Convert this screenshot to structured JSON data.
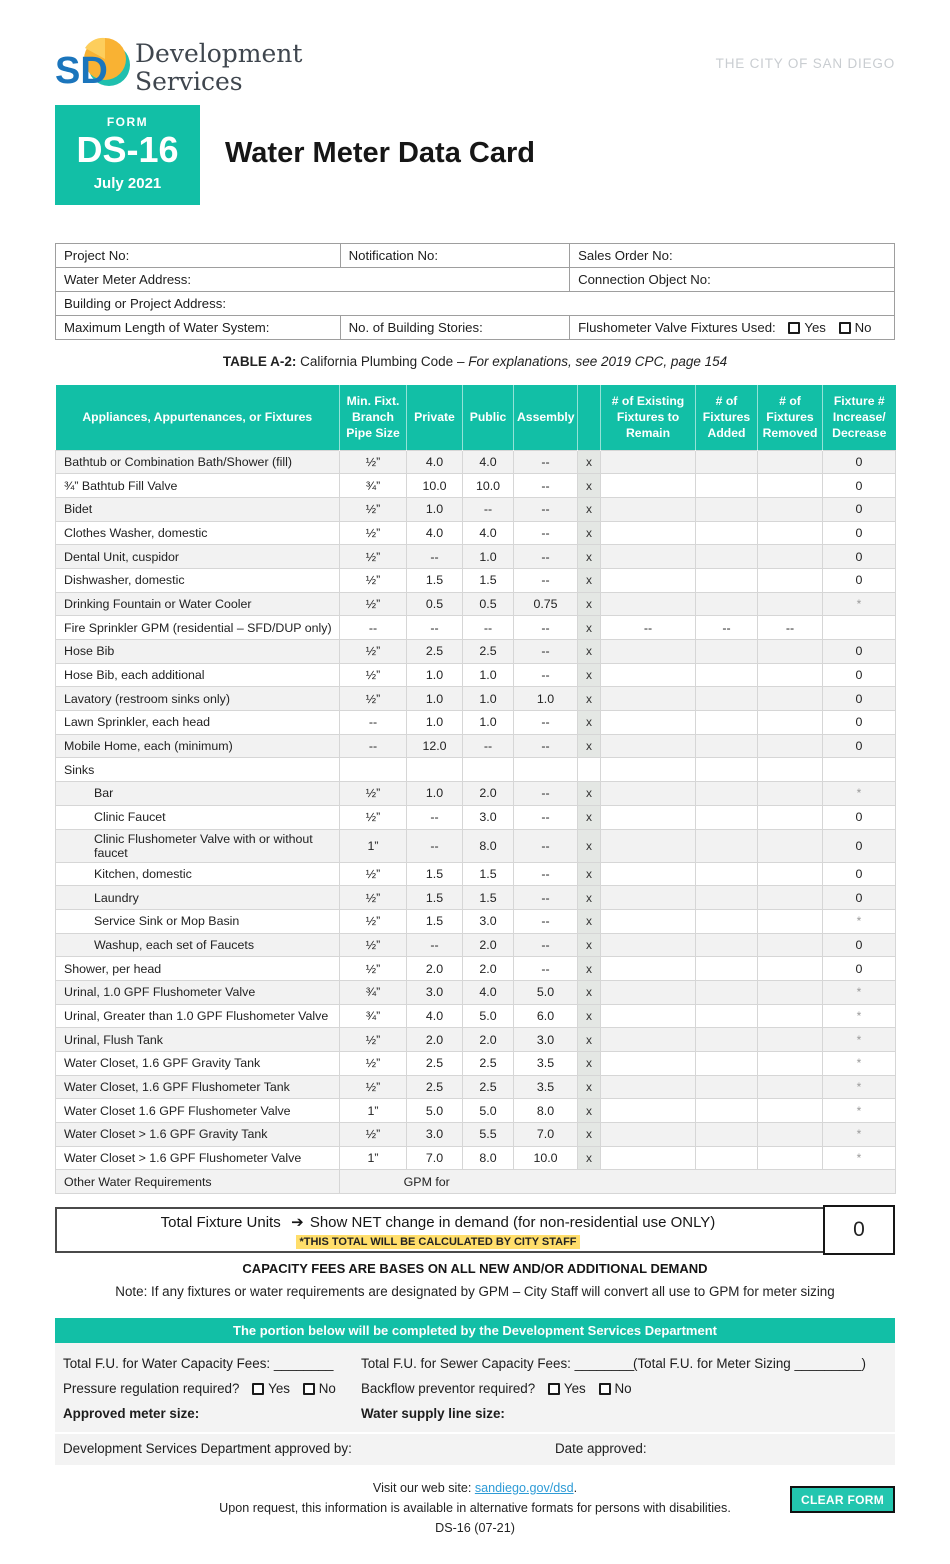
{
  "colors": {
    "teal": "#12BFA6",
    "button_teal": "#23C6AF",
    "highlight_yellow": "#FFDE6B",
    "link_blue": "#2E9BD6",
    "stripe_gray": "#F2F2F2",
    "x_band_gray": "#E4E7E4",
    "logo_blue": "#1B75BC",
    "logo_yellow": "#F9B233",
    "logo_teal": "#1FBFAE",
    "city_gray": "#C9CDD1"
  },
  "header": {
    "city": "THE CITY OF SAN DIEGO",
    "logo_sd": "SD",
    "logo_line1": "Development",
    "logo_line2": "Services",
    "form_label": "FORM",
    "form_number": "DS-16",
    "form_date": "July 2021",
    "title": "Water Meter Data Card"
  },
  "project_info": {
    "project_no": "Project No:",
    "notification_no": "Notification No:",
    "sales_order_no": "Sales Order No:",
    "water_meter_address": "Water Meter Address:",
    "connection_object_no": "Connection Object No:",
    "building_address": "Building or Project Address:",
    "max_length": "Maximum Length of Water System:",
    "stories": "No. of Building Stories:",
    "flushometer_used": "Flushometer Valve Fixtures Used:",
    "yes": "Yes",
    "no": "No"
  },
  "table": {
    "caption_bold": "TABLE A-2:",
    "caption_text": " California Plumbing Code – ",
    "caption_italic": "For explanations, see 2019 CPC, page 154",
    "headers": [
      "Appliances, Appurtenances, or Fixtures",
      "Min. Fixt. Branch Pipe Size",
      "Private",
      "Public",
      "Assembly",
      "",
      "# of Existing Fixtures to Remain",
      "# of Fixtures Added",
      "# of Fixtures Removed",
      "Fixture # Increase/ Decrease"
    ],
    "rows": [
      {
        "name": "Bathtub or Combination Bath/Shower (fill)",
        "pipe": "½”",
        "private": "4.0",
        "public": "4.0",
        "assembly": "--",
        "x": "x",
        "existing": "",
        "added": "",
        "removed": "",
        "change": "0"
      },
      {
        "name": "¾” Bathtub Fill Valve",
        "pipe": "¾”",
        "private": "10.0",
        "public": "10.0",
        "assembly": "--",
        "x": "x",
        "existing": "",
        "added": "",
        "removed": "",
        "change": "0"
      },
      {
        "name": "Bidet",
        "pipe": "½”",
        "private": "1.0",
        "public": "--",
        "assembly": "--",
        "x": "x",
        "existing": "",
        "added": "",
        "removed": "",
        "change": "0"
      },
      {
        "name": "Clothes Washer, domestic",
        "pipe": "½”",
        "private": "4.0",
        "public": "4.0",
        "assembly": "--",
        "x": "x",
        "existing": "",
        "added": "",
        "removed": "",
        "change": "0"
      },
      {
        "name": "Dental Unit, cuspidor",
        "pipe": "½”",
        "private": "--",
        "public": "1.0",
        "assembly": "--",
        "x": "x",
        "existing": "",
        "added": "",
        "removed": "",
        "change": "0"
      },
      {
        "name": "Dishwasher, domestic",
        "pipe": "½”",
        "private": "1.5",
        "public": "1.5",
        "assembly": "--",
        "x": "x",
        "existing": "",
        "added": "",
        "removed": "",
        "change": "0"
      },
      {
        "name": "Drinking Fountain or Water Cooler",
        "pipe": "½”",
        "private": "0.5",
        "public": "0.5",
        "assembly": "0.75",
        "x": "x",
        "existing": "",
        "added": "",
        "removed": "",
        "change": "*"
      },
      {
        "name": "Fire Sprinkler GPM (residential – SFD/DUP only)",
        "pipe": "--",
        "private": "--",
        "public": "--",
        "assembly": "--",
        "x": "x",
        "existing": "--",
        "added": "--",
        "removed": "--",
        "change": ""
      },
      {
        "name": "Hose Bib",
        "pipe": "½”",
        "private": "2.5",
        "public": "2.5",
        "assembly": "--",
        "x": "x",
        "existing": "",
        "added": "",
        "removed": "",
        "change": "0"
      },
      {
        "name": "Hose Bib, each additional",
        "pipe": "½”",
        "private": "1.0",
        "public": "1.0",
        "assembly": "--",
        "x": "x",
        "existing": "",
        "added": "",
        "removed": "",
        "change": "0"
      },
      {
        "name": "Lavatory (restroom sinks only)",
        "pipe": "½”",
        "private": "1.0",
        "public": "1.0",
        "assembly": "1.0",
        "x": "x",
        "existing": "",
        "added": "",
        "removed": "",
        "change": "0"
      },
      {
        "name": "Lawn Sprinkler, each head",
        "pipe": "--",
        "private": "1.0",
        "public": "1.0",
        "assembly": "--",
        "x": "x",
        "existing": "",
        "added": "",
        "removed": "",
        "change": "0"
      },
      {
        "name": "Mobile Home, each (minimum)",
        "pipe": "--",
        "private": "12.0",
        "public": "--",
        "assembly": "--",
        "x": "x",
        "existing": "",
        "added": "",
        "removed": "",
        "change": "0"
      },
      {
        "name": "Sinks",
        "section": true,
        "pipe": "",
        "private": "",
        "public": "",
        "assembly": "",
        "x": "",
        "existing": "",
        "added": "",
        "removed": "",
        "change": ""
      },
      {
        "name": "Bar",
        "indent": true,
        "pipe": "½”",
        "private": "1.0",
        "public": "2.0",
        "assembly": "--",
        "x": "x",
        "existing": "",
        "added": "",
        "removed": "",
        "change": "*"
      },
      {
        "name": "Clinic Faucet",
        "indent": true,
        "pipe": "½”",
        "private": "--",
        "public": "3.0",
        "assembly": "--",
        "x": "x",
        "existing": "",
        "added": "",
        "removed": "",
        "change": "0"
      },
      {
        "name": "Clinic Flushometer Valve with or without faucet",
        "indent": true,
        "pipe": "1”",
        "private": "--",
        "public": "8.0",
        "assembly": "--",
        "x": "x",
        "existing": "",
        "added": "",
        "removed": "",
        "change": "0"
      },
      {
        "name": "Kitchen, domestic",
        "indent": true,
        "pipe": "½”",
        "private": "1.5",
        "public": "1.5",
        "assembly": "--",
        "x": "x",
        "existing": "",
        "added": "",
        "removed": "",
        "change": "0"
      },
      {
        "name": "Laundry",
        "indent": true,
        "pipe": "½”",
        "private": "1.5",
        "public": "1.5",
        "assembly": "--",
        "x": "x",
        "existing": "",
        "added": "",
        "removed": "",
        "change": "0"
      },
      {
        "name": "Service Sink or Mop Basin",
        "indent": true,
        "pipe": "½”",
        "private": "1.5",
        "public": "3.0",
        "assembly": "--",
        "x": "x",
        "existing": "",
        "added": "",
        "removed": "",
        "change": "*"
      },
      {
        "name": "Washup, each set of Faucets",
        "indent": true,
        "pipe": "½”",
        "private": "--",
        "public": "2.0",
        "assembly": "--",
        "x": "x",
        "existing": "",
        "added": "",
        "removed": "",
        "change": "0"
      },
      {
        "name": "Shower, per head",
        "pipe": "½”",
        "private": "2.0",
        "public": "2.0",
        "assembly": "--",
        "x": "x",
        "existing": "",
        "added": "",
        "removed": "",
        "change": "0"
      },
      {
        "name": "Urinal, 1.0 GPF Flushometer Valve",
        "pipe": "¾”",
        "private": "3.0",
        "public": "4.0",
        "assembly": "5.0",
        "x": "x",
        "existing": "",
        "added": "",
        "removed": "",
        "change": "*"
      },
      {
        "name": "Urinal, Greater than 1.0 GPF Flushometer Valve",
        "pipe": "¾”",
        "private": "4.0",
        "public": "5.0",
        "assembly": "6.0",
        "x": "x",
        "existing": "",
        "added": "",
        "removed": "",
        "change": "*"
      },
      {
        "name": "Urinal, Flush Tank",
        "pipe": "½”",
        "private": "2.0",
        "public": "2.0",
        "assembly": "3.0",
        "x": "x",
        "existing": "",
        "added": "",
        "removed": "",
        "change": "*"
      },
      {
        "name": "Water Closet, 1.6 GPF Gravity Tank",
        "pipe": "½”",
        "private": "2.5",
        "public": "2.5",
        "assembly": "3.5",
        "x": "x",
        "existing": "",
        "added": "",
        "removed": "",
        "change": "*"
      },
      {
        "name": "Water Closet, 1.6 GPF Flushometer Tank",
        "pipe": "½”",
        "private": "2.5",
        "public": "2.5",
        "assembly": "3.5",
        "x": "x",
        "existing": "",
        "added": "",
        "removed": "",
        "change": "*"
      },
      {
        "name": "Water Closet 1.6 GPF Flushometer Valve",
        "pipe": "1”",
        "private": "5.0",
        "public": "5.0",
        "assembly": "8.0",
        "x": "x",
        "existing": "",
        "added": "",
        "removed": "",
        "change": "*"
      },
      {
        "name": "Water Closet > 1.6 GPF Gravity Tank",
        "pipe": "½”",
        "private": "3.0",
        "public": "5.5",
        "assembly": "7.0",
        "x": "x",
        "existing": "",
        "added": "",
        "removed": "",
        "change": "*"
      },
      {
        "name": "Water Closet > 1.6 GPF Flushometer Valve",
        "pipe": "1”",
        "private": "7.0",
        "public": "8.0",
        "assembly": "10.0",
        "x": "x",
        "existing": "",
        "added": "",
        "removed": "",
        "change": "*"
      },
      {
        "name": "Other Water Requirements",
        "other": true,
        "gpm_label": "GPM for"
      }
    ]
  },
  "total": {
    "label": "Total Fixture Units",
    "arrow": "➔",
    "text": "Show NET change in demand (for non-residential use ONLY)",
    "highlight": "*THIS TOTAL WILL BE CALCULATED BY CITY STAFF",
    "value": "0"
  },
  "notes": {
    "capacity": "CAPACITY FEES ARE BASES ON ALL NEW AND/OR ADDITIONAL DEMAND",
    "gpm": "Note: If any fixtures or water requirements are designated by GPM – City Staff will convert all use to GPM for meter sizing"
  },
  "dsd": {
    "bar": "The portion below will be completed by the Development Services Department",
    "water_fees": "Total F.U. for Water Capacity Fees: ________",
    "sewer_fees": "Total F.U. for Sewer Capacity Fees: ________",
    "meter_sizing": "(Total F.U. for Meter Sizing _________)",
    "pressure": "Pressure regulation required?",
    "backflow": "Backflow preventor required?",
    "yes": "Yes",
    "no": "No",
    "approved_meter": "Approved meter size:",
    "supply_line": "Water supply line size:",
    "approved_by": "Development Services Department approved by:",
    "date_approved": "Date approved:"
  },
  "footer": {
    "visit_prefix": "Visit our web site: ",
    "link": "sandiego.gov/dsd",
    "visit_suffix": ".",
    "alt_formats": "Upon request, this information is available in alternative formats for persons with disabilities.",
    "form_code": "DS-16 (07-21)",
    "clear_button": "CLEAR FORM"
  }
}
